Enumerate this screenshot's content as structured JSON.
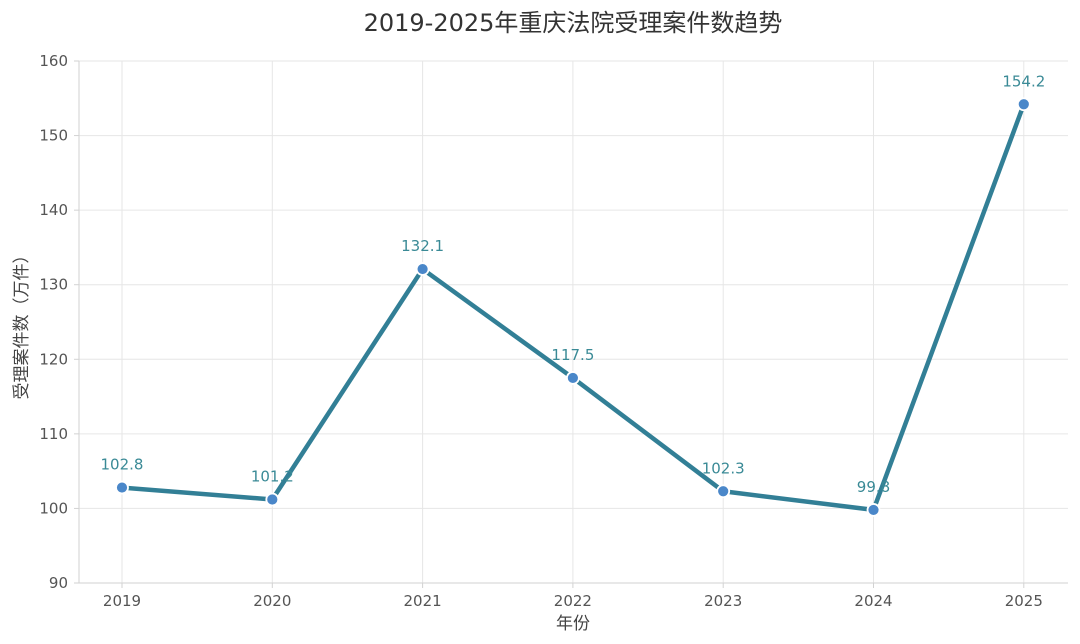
{
  "chart_data": {
    "type": "line",
    "title": "2019-2025年重庆法院受理案件数趋势",
    "xlabel": "年份",
    "ylabel": "受理案件数（万件）",
    "categories": [
      "2019",
      "2020",
      "2021",
      "2022",
      "2023",
      "2024",
      "2025"
    ],
    "series": [
      {
        "values": [
          102.8,
          101.2,
          132.1,
          117.5,
          102.3,
          99.8,
          154.2
        ],
        "data_labels": [
          "102.8",
          "101.2",
          "132.1",
          "117.5",
          "102.3",
          "99.8",
          "154.2"
        ]
      }
    ],
    "ylim": [
      90,
      160
    ],
    "yticks": [
      90,
      100,
      110,
      120,
      130,
      140,
      150,
      160
    ],
    "ytick_labels": [
      "90",
      "100",
      "110",
      "120",
      "130",
      "140",
      "150",
      "160"
    ],
    "grid": true,
    "legend": "none",
    "colors": {
      "line": "#327f96",
      "marker": "#4a87c9",
      "marker_stroke": "#ffffff",
      "data_label": "#3a8a96"
    }
  }
}
